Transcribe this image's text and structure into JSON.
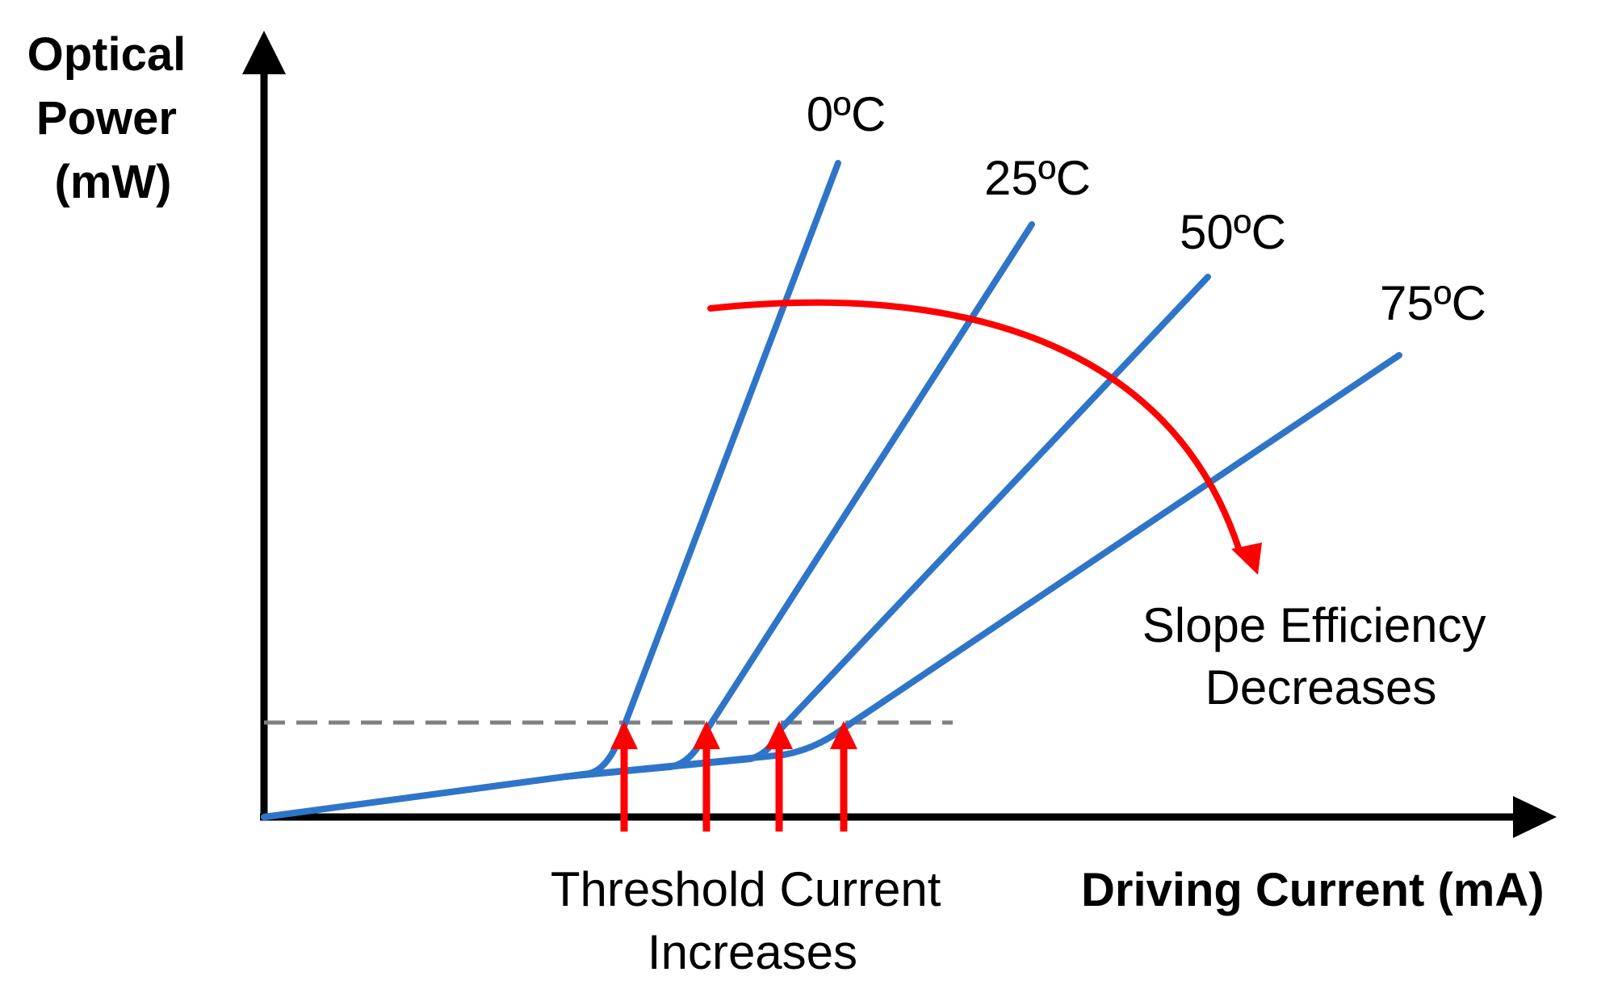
{
  "y_axis_label": [
    "Optical",
    "Power",
    "(mW)"
  ],
  "x_axis_label": "Driving Current (mA)",
  "curves": [
    {
      "label": "0ºC"
    },
    {
      "label": "25ºC"
    },
    {
      "label": "50ºC"
    },
    {
      "label": "75ºC"
    }
  ],
  "annotation_slope": [
    "Slope Efficiency",
    "Decreases"
  ],
  "annotation_threshold": [
    "Threshold Current",
    "Increases"
  ],
  "colors": {
    "axes": "#000000",
    "curves": "#2E75C9",
    "annotations": "#FF0000",
    "dashed_line": "#7F7F7F"
  }
}
